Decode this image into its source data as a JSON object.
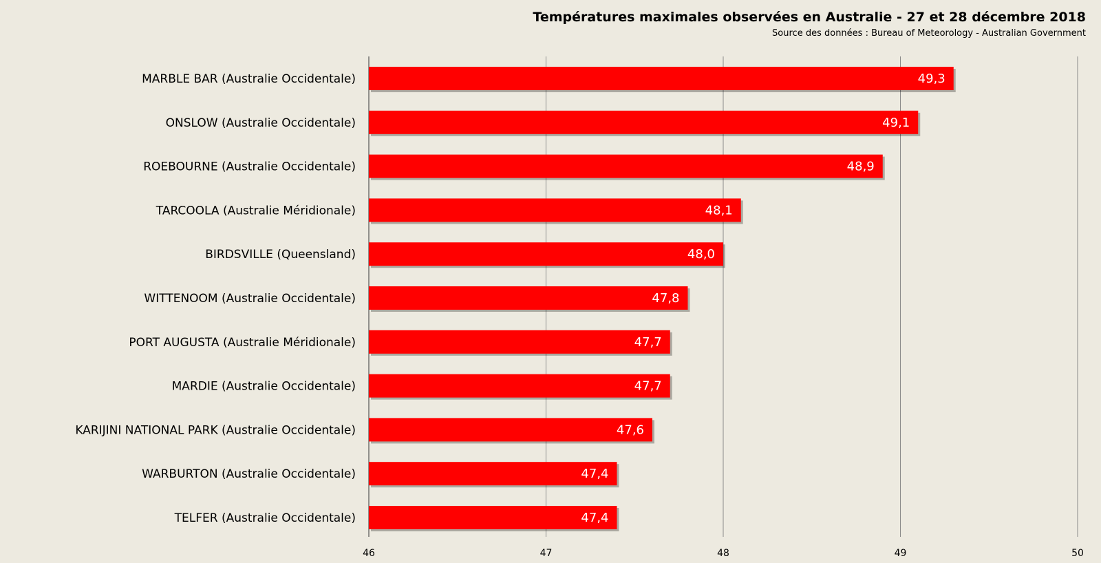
{
  "chart_data": {
    "type": "bar",
    "orientation": "horizontal",
    "title": "Températures maximales observées en Australie - 27 et 28 décembre 2018",
    "subtitle": "Source des données : Bureau of Meteorology - Australian Government",
    "xlabel": "",
    "ylabel": "",
    "xlim": [
      46,
      50
    ],
    "ticks": [
      "46",
      "47",
      "48",
      "49",
      "50"
    ],
    "grid": true,
    "legend": "none",
    "bar_color": "#ff0000",
    "categories": [
      "MARBLE BAR (Australie Occidentale)",
      "ONSLOW (Australie Occidentale)",
      "ROEBOURNE (Australie Occidentale)",
      "TARCOOLA (Australie Méridionale)",
      "BIRDSVILLE (Queensland)",
      "WITTENOOM (Australie Occidentale)",
      "PORT AUGUSTA (Australie Méridionale)",
      "MARDIE (Australie Occidentale)",
      "KARIJINI NATIONAL PARK (Australie Occidentale)",
      "WARBURTON (Australie Occidentale)",
      "TELFER (Australie Occidentale)"
    ],
    "values": [
      49.3,
      49.1,
      48.9,
      48.1,
      48.0,
      47.8,
      47.7,
      47.7,
      47.6,
      47.4,
      47.4
    ],
    "value_labels": [
      "49,3",
      "49,1",
      "48,9",
      "48,1",
      "48,0",
      "47,8",
      "47,7",
      "47,7",
      "47,6",
      "47,4",
      "47,4"
    ]
  }
}
